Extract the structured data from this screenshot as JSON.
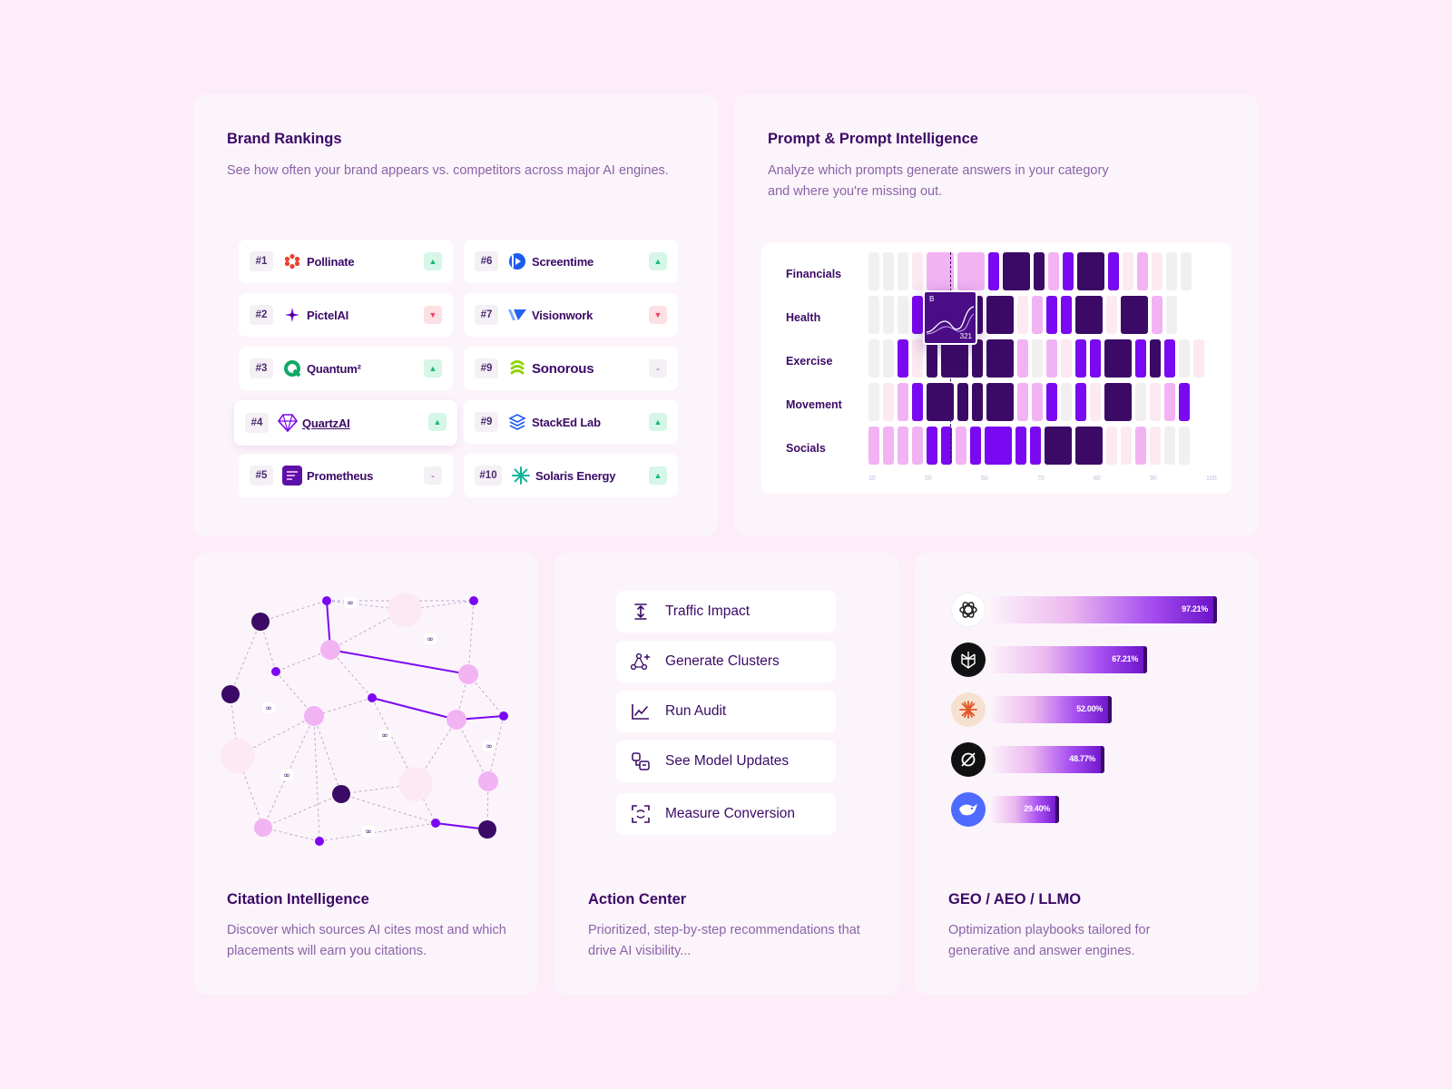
{
  "brand_rankings": {
    "title": "Brand Rankings",
    "description": "See how often your brand appears vs. competitors across major AI engines.",
    "items": [
      {
        "rank": "#1",
        "name": "Pollinate",
        "trend": "up"
      },
      {
        "rank": "#2",
        "name": "PictelAI",
        "trend": "down"
      },
      {
        "rank": "#3",
        "name": "Quantum²",
        "trend": "up"
      },
      {
        "rank": "#4",
        "name": "QuartzAI",
        "trend": "up"
      },
      {
        "rank": "#5",
        "name": "Prometheus",
        "trend": "flat"
      },
      {
        "rank": "#6",
        "name": "Screentime",
        "trend": "up"
      },
      {
        "rank": "#7",
        "name": "Visionwork",
        "trend": "down"
      },
      {
        "rank": "#9",
        "name": "Sonorous",
        "trend": "flat"
      },
      {
        "rank": "#9",
        "name": "StackEd Lab",
        "trend": "up"
      },
      {
        "rank": "#10",
        "name": "Solaris Energy",
        "trend": "up"
      }
    ],
    "flat_symbol": "-"
  },
  "prompt_intelligence": {
    "title": "Prompt & Prompt Intelligence",
    "description": "Analyze which prompts generate answers in your category and where you're missing out.",
    "rows": [
      "Financials",
      "Health",
      "Exercise",
      "Movement",
      "Socials"
    ],
    "ticks": [
      "30",
      "50",
      "60",
      "70",
      "80",
      "90",
      "100"
    ],
    "tooltip": {
      "label": "B",
      "value": "321"
    }
  },
  "citation": {
    "title": "Citation Intelligence",
    "description": "Discover which sources AI cites most and which placements will earn you citations.",
    "link_symbol": "∞"
  },
  "action_center": {
    "title": "Action Center",
    "description": "Prioritized, step-by-step recommendations that drive AI visibility...",
    "actions": [
      "Traffic Impact",
      "Generate Clusters",
      "Run Audit",
      "See Model Updates",
      "Measure Conversion"
    ]
  },
  "geo": {
    "title": "GEO / AEO / LLMO",
    "description": "Optimization playbooks tailored for generative and answer engines.",
    "bars": [
      {
        "logo": "openai-icon",
        "value": 97.21,
        "label": "97.21%"
      },
      {
        "logo": "perplexity-icon",
        "value": 67.21,
        "label": "67.21%"
      },
      {
        "logo": "claude-icon",
        "value": 52.0,
        "label": "52.00%"
      },
      {
        "logo": "grok-icon",
        "value": 48.77,
        "label": "48.77%"
      },
      {
        "logo": "deepseek-icon",
        "value": 29.4,
        "label": "29.40%"
      }
    ]
  },
  "colors": {
    "background": "#fcedf8",
    "card": "#fcf4fb",
    "title": "#3b0a66",
    "desc": "#8a63a8",
    "dark_purple": "#3b0a66",
    "purple": "#7a08f0",
    "pink": "#f2b3f3",
    "light_pink": "#fde9f1",
    "gray": "#f1efef"
  }
}
